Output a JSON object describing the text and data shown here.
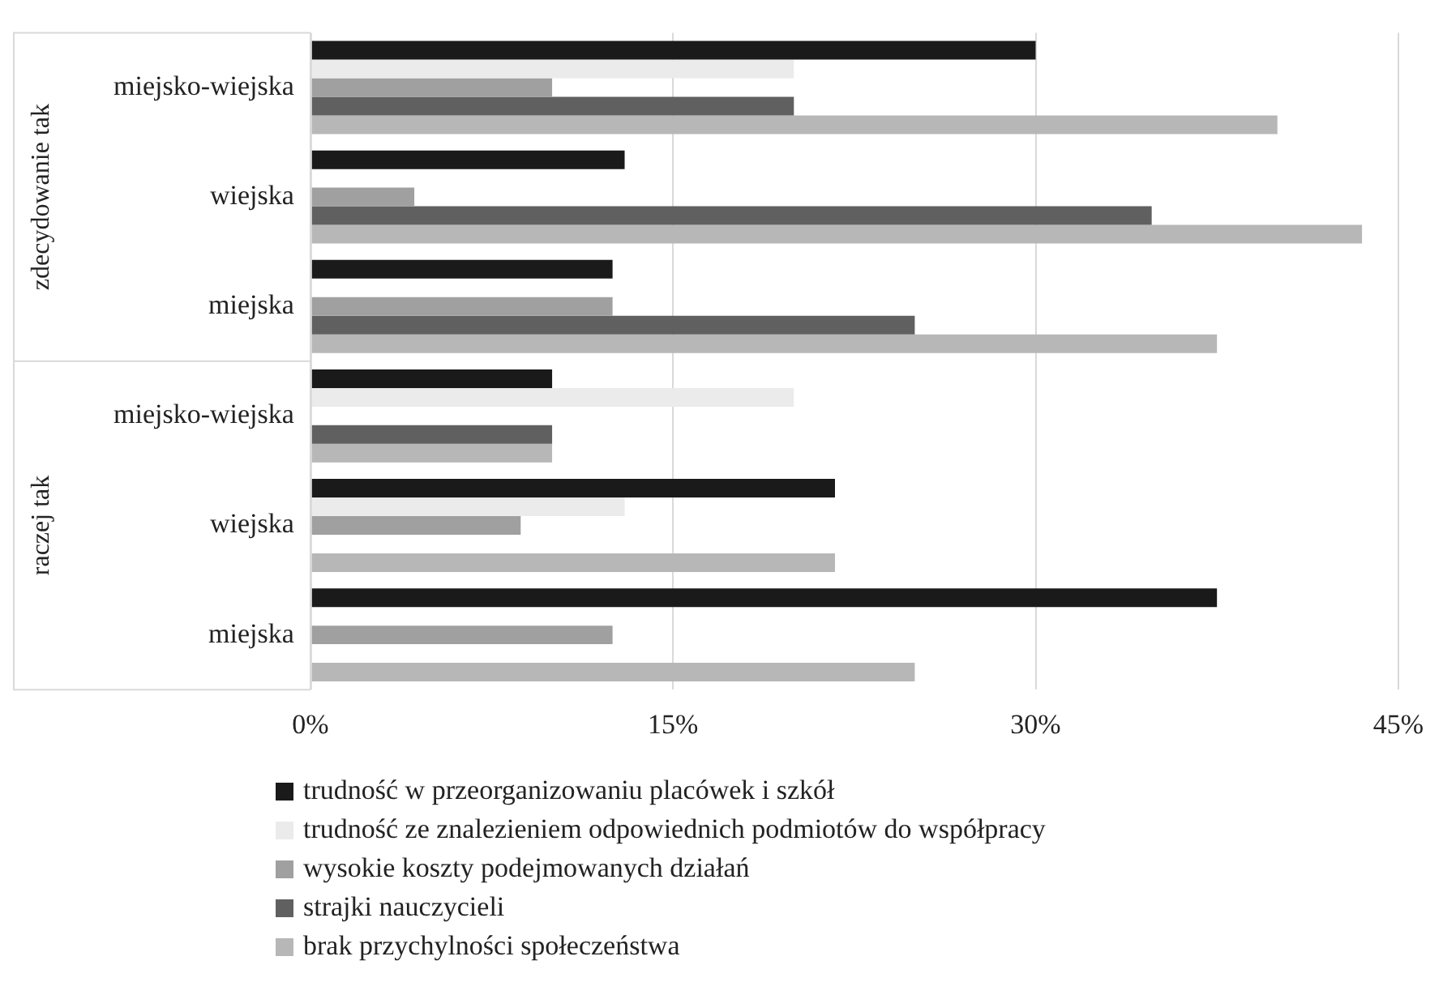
{
  "chart_data": {
    "type": "bar",
    "orientation": "horizontal",
    "categories": [
      "miejsko-wiejska",
      "wiejska",
      "miejska",
      "miejsko-wiejska",
      "wiejska",
      "miejska"
    ],
    "annotations": [
      "zdecydowanie tak",
      "raczej tak"
    ],
    "series": [
      {
        "name": "trudność w przeorganizowaniu placówek i szkół",
        "color": "#1a1a1a",
        "values": [
          30,
          13,
          12.5,
          10,
          21.7,
          37.5
        ]
      },
      {
        "name": "trudność ze znalezieniem odpowiednich podmiotów do współpracy",
        "color": "#ebebeb",
        "values": [
          20,
          0,
          0,
          20,
          13,
          0
        ]
      },
      {
        "name": "wysokie koszty podejmowanych działań",
        "color": "#a0a0a0",
        "values": [
          10,
          4.3,
          12.5,
          0,
          8.7,
          12.5
        ]
      },
      {
        "name": "strajki nauczycieli",
        "color": "#606060",
        "values": [
          20,
          34.8,
          25,
          10,
          0,
          0
        ]
      },
      {
        "name": "brak przychylności społeczeństwa",
        "color": "#b7b7b7",
        "values": [
          40,
          43.5,
          37.5,
          10,
          21.7,
          25
        ]
      }
    ],
    "xlim": [
      0,
      45
    ],
    "xticks": [
      {
        "value": 0,
        "label": "0%"
      },
      {
        "value": 15,
        "label": "15%"
      },
      {
        "value": 30,
        "label": "30%"
      },
      {
        "value": 45,
        "label": "45%"
      }
    ],
    "grid": "x",
    "legend": "bottom"
  }
}
